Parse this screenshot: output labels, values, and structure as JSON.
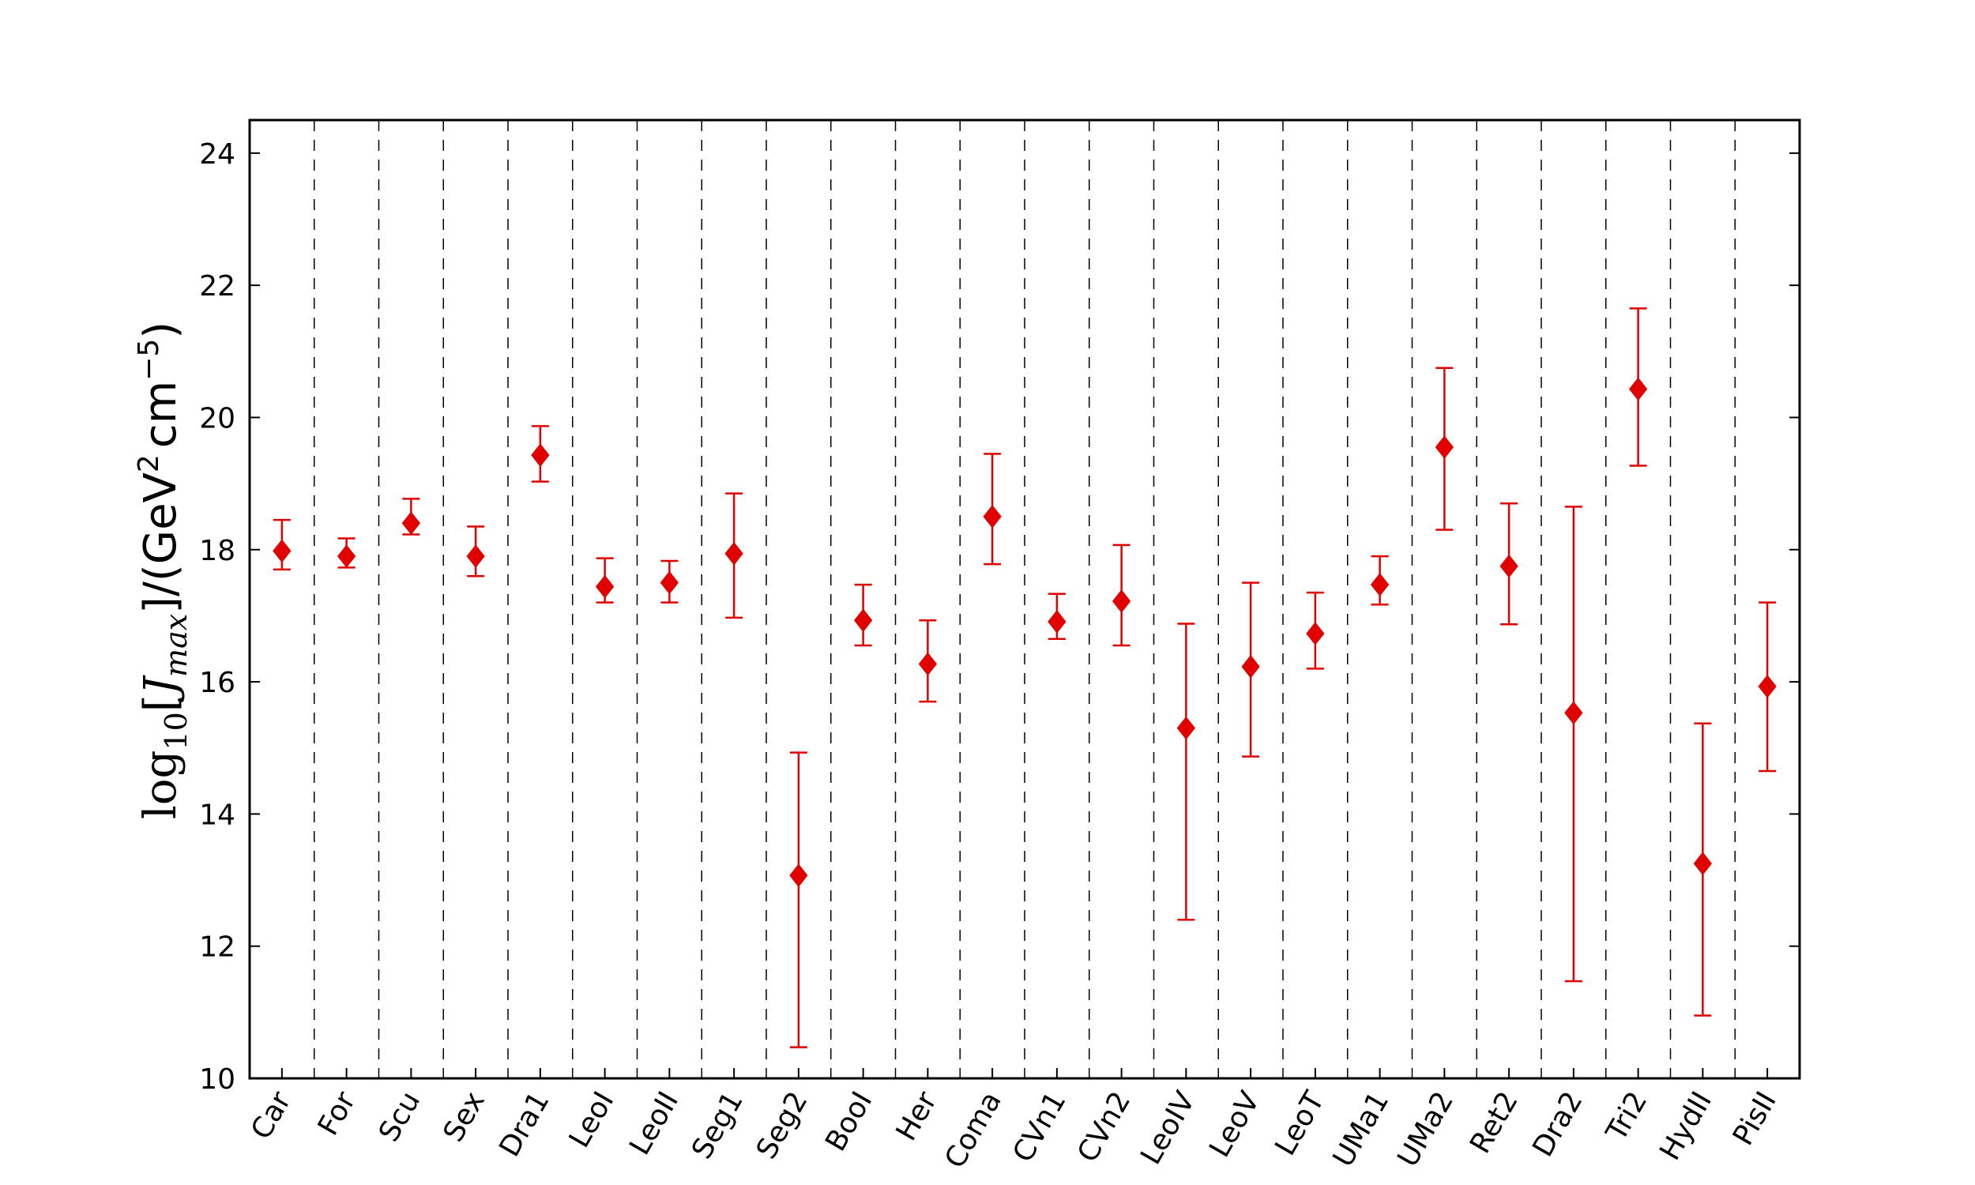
{
  "chart_data": {
    "type": "scatter",
    "ylabel": "log10[J_max]/(GeV^2 cm^-5)",
    "ylabel_parts": {
      "log": "log",
      "sub10": "10",
      "open": "[",
      "J": "J",
      "max": "max",
      "close": "]/(GeV",
      "sq": "2",
      "cm": "cm",
      "neg5": "−5",
      "end": ")"
    },
    "ylim": [
      10,
      24.5
    ],
    "yticks": [
      10,
      12,
      14,
      16,
      18,
      20,
      22,
      24
    ],
    "grid": "dashed vertical separators between categories",
    "marker": "diamond",
    "color": "#e00000",
    "categories": [
      "Car",
      "For",
      "Scu",
      "Sex",
      "Dra1",
      "LeoI",
      "LeoII",
      "Seg1",
      "Seg2",
      "BooI",
      "Her",
      "Coma",
      "CVn1",
      "CVn2",
      "LeoIV",
      "LeoV",
      "LeoT",
      "UMa1",
      "UMa2",
      "Ret2",
      "Dra2",
      "Tri2",
      "HydII",
      "PisII"
    ],
    "values": [
      17.98,
      17.9,
      18.4,
      17.9,
      19.43,
      17.44,
      17.5,
      17.94,
      13.07,
      16.93,
      16.27,
      18.5,
      16.91,
      17.22,
      15.3,
      16.23,
      16.73,
      17.47,
      19.55,
      17.75,
      15.53,
      20.43,
      13.25,
      15.93
    ],
    "err_low": [
      17.7,
      17.73,
      18.23,
      17.6,
      19.03,
      17.2,
      17.2,
      16.97,
      10.47,
      16.55,
      15.7,
      17.78,
      16.65,
      16.55,
      12.4,
      14.87,
      16.2,
      17.17,
      18.3,
      16.87,
      11.47,
      19.27,
      10.95,
      14.65
    ],
    "err_high": [
      18.45,
      18.17,
      18.77,
      18.35,
      19.87,
      17.87,
      17.83,
      18.85,
      14.93,
      17.47,
      16.93,
      19.45,
      17.33,
      18.07,
      16.88,
      17.5,
      17.35,
      17.9,
      20.75,
      18.7,
      18.65,
      21.65,
      15.37,
      17.2
    ]
  }
}
